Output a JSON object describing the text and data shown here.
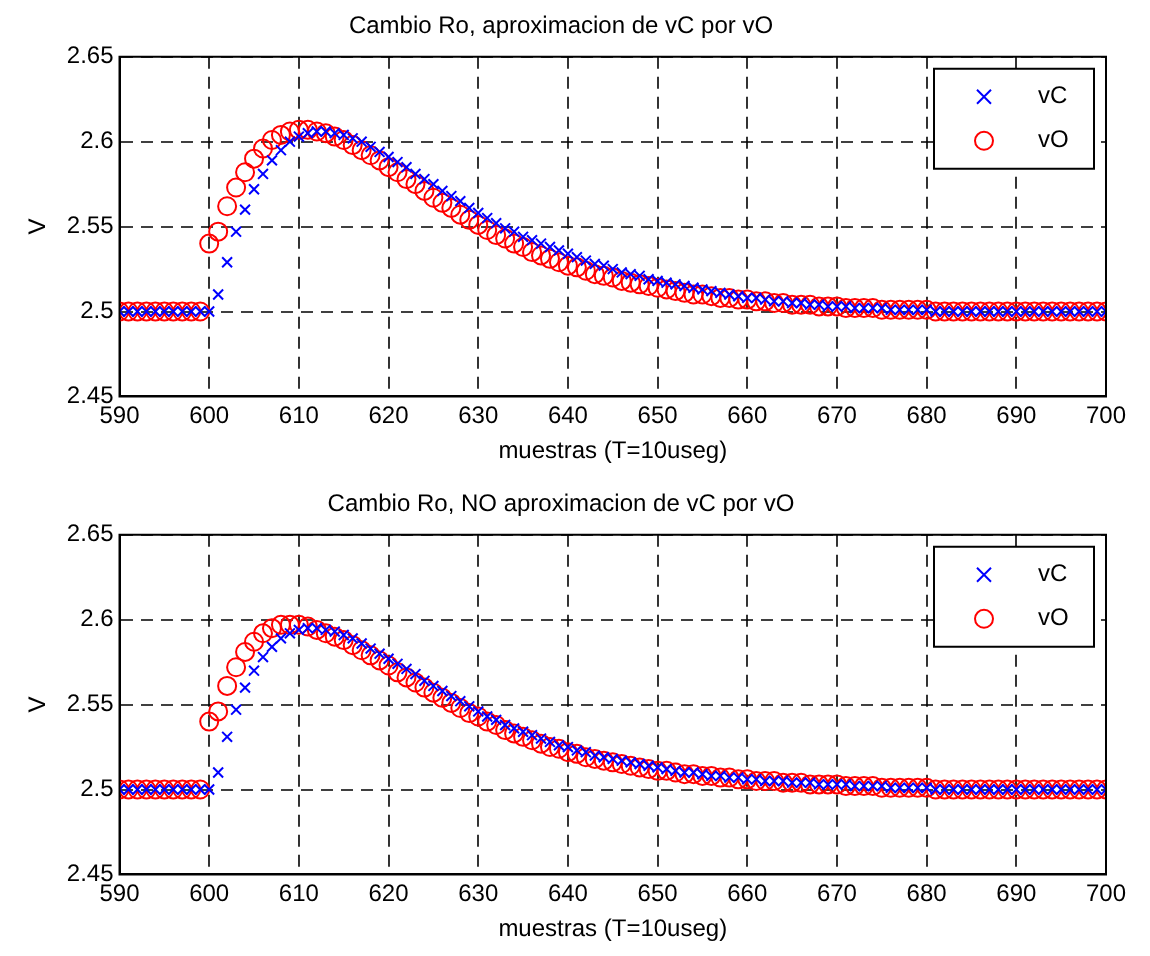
{
  "chart_data": [
    {
      "type": "scatter",
      "title": "Cambio Ro, aproximacion de vC por vO",
      "xlabel": "muestras (T=10useg)",
      "ylabel": "V",
      "x": [
        590,
        591,
        592,
        593,
        594,
        595,
        596,
        597,
        598,
        599,
        600,
        601,
        602,
        603,
        604,
        605,
        606,
        607,
        608,
        609,
        610,
        611,
        612,
        613,
        614,
        615,
        616,
        617,
        618,
        619,
        620,
        621,
        622,
        623,
        624,
        625,
        626,
        627,
        628,
        629,
        630,
        631,
        632,
        633,
        634,
        635,
        636,
        637,
        638,
        639,
        640,
        641,
        642,
        643,
        644,
        645,
        646,
        647,
        648,
        649,
        650,
        651,
        652,
        653,
        654,
        655,
        656,
        657,
        658,
        659,
        660,
        661,
        662,
        663,
        664,
        665,
        666,
        667,
        668,
        669,
        670,
        671,
        672,
        673,
        674,
        675,
        676,
        677,
        678,
        679,
        680,
        681,
        682,
        683,
        684,
        685,
        686,
        687,
        688,
        689,
        690,
        691,
        692,
        693,
        694,
        695,
        696,
        697,
        698,
        699,
        700
      ],
      "xlim": [
        590,
        700
      ],
      "xticks": [
        590,
        600,
        610,
        620,
        630,
        640,
        650,
        660,
        670,
        680,
        690,
        700
      ],
      "ylim": [
        2.45,
        2.65
      ],
      "yticks": [
        2.45,
        2.5,
        2.55,
        2.6,
        2.65
      ],
      "grid": true,
      "legend": "top right",
      "line_style": "dashed",
      "series": [
        {
          "name": "vC",
          "color": "#0000ff",
          "marker": "cross",
          "values": [
            2.5,
            2.5,
            2.5,
            2.5,
            2.5,
            2.5,
            2.5,
            2.5,
            2.5,
            2.5,
            2.5,
            2.51,
            2.529,
            2.547,
            2.56,
            2.572,
            2.581,
            2.589,
            2.595,
            2.6,
            2.603,
            2.605,
            2.606,
            2.606,
            2.605,
            2.604,
            2.602,
            2.6,
            2.597,
            2.594,
            2.591,
            2.588,
            2.585,
            2.581,
            2.578,
            2.575,
            2.571,
            2.568,
            2.565,
            2.561,
            2.558,
            2.555,
            2.552,
            2.549,
            2.547,
            2.544,
            2.542,
            2.54,
            2.538,
            2.536,
            2.534,
            2.532,
            2.53,
            2.528,
            2.527,
            2.525,
            2.523,
            2.522,
            2.521,
            2.519,
            2.518,
            2.517,
            2.516,
            2.515,
            2.514,
            2.513,
            2.512,
            2.511,
            2.51,
            2.509,
            2.508,
            2.508,
            2.507,
            2.506,
            2.506,
            2.505,
            2.505,
            2.504,
            2.504,
            2.503,
            2.503,
            2.503,
            2.502,
            2.502,
            2.502,
            2.502,
            2.501,
            2.501,
            2.501,
            2.501,
            2.501,
            2.5,
            2.5,
            2.5,
            2.5,
            2.5,
            2.5,
            2.5,
            2.5,
            2.5,
            2.5,
            2.5,
            2.5,
            2.5,
            2.5,
            2.5,
            2.5,
            2.5,
            2.5,
            2.5,
            2.5
          ]
        },
        {
          "name": "vO",
          "color": "#ff0000",
          "marker": "circle",
          "values": [
            2.5,
            2.5,
            2.5,
            2.5,
            2.5,
            2.5,
            2.5,
            2.5,
            2.5,
            2.5,
            2.54,
            2.547,
            2.562,
            2.573,
            2.582,
            2.59,
            2.596,
            2.601,
            2.604,
            2.606,
            2.607,
            2.607,
            2.606,
            2.605,
            2.603,
            2.601,
            2.598,
            2.595,
            2.592,
            2.589,
            2.585,
            2.582,
            2.578,
            2.575,
            2.571,
            2.567,
            2.564,
            2.561,
            2.557,
            2.554,
            2.551,
            2.548,
            2.545,
            2.543,
            2.54,
            2.538,
            2.535,
            2.533,
            2.531,
            2.529,
            2.527,
            2.526,
            2.524,
            2.522,
            2.521,
            2.52,
            2.518,
            2.517,
            2.516,
            2.515,
            2.514,
            2.513,
            2.512,
            2.511,
            2.51,
            2.51,
            2.509,
            2.508,
            2.508,
            2.507,
            2.507,
            2.506,
            2.506,
            2.505,
            2.505,
            2.504,
            2.504,
            2.504,
            2.503,
            2.503,
            2.503,
            2.502,
            2.502,
            2.502,
            2.502,
            2.501,
            2.501,
            2.501,
            2.501,
            2.501,
            2.501,
            2.5,
            2.5,
            2.5,
            2.5,
            2.5,
            2.5,
            2.5,
            2.5,
            2.5,
            2.5,
            2.5,
            2.5,
            2.5,
            2.5,
            2.5,
            2.5,
            2.5,
            2.5,
            2.5,
            2.5
          ]
        }
      ]
    },
    {
      "type": "scatter",
      "title": "Cambio Ro, NO aproximacion de vC por vO",
      "xlabel": "muestras (T=10useg)",
      "ylabel": "V",
      "x": [
        590,
        591,
        592,
        593,
        594,
        595,
        596,
        597,
        598,
        599,
        600,
        601,
        602,
        603,
        604,
        605,
        606,
        607,
        608,
        609,
        610,
        611,
        612,
        613,
        614,
        615,
        616,
        617,
        618,
        619,
        620,
        621,
        622,
        623,
        624,
        625,
        626,
        627,
        628,
        629,
        630,
        631,
        632,
        633,
        634,
        635,
        636,
        637,
        638,
        639,
        640,
        641,
        642,
        643,
        644,
        645,
        646,
        647,
        648,
        649,
        650,
        651,
        652,
        653,
        654,
        655,
        656,
        657,
        658,
        659,
        660,
        661,
        662,
        663,
        664,
        665,
        666,
        667,
        668,
        669,
        670,
        671,
        672,
        673,
        674,
        675,
        676,
        677,
        678,
        679,
        680,
        681,
        682,
        683,
        684,
        685,
        686,
        687,
        688,
        689,
        690,
        691,
        692,
        693,
        694,
        695,
        696,
        697,
        698,
        699,
        700
      ],
      "xlim": [
        590,
        700
      ],
      "xticks": [
        590,
        600,
        610,
        620,
        630,
        640,
        650,
        660,
        670,
        680,
        690,
        700
      ],
      "ylim": [
        2.45,
        2.65
      ],
      "yticks": [
        2.45,
        2.5,
        2.55,
        2.6,
        2.65
      ],
      "grid": true,
      "legend": "top right",
      "line_style": "dashed",
      "series": [
        {
          "name": "vC",
          "color": "#0000ff",
          "marker": "cross",
          "values": [
            2.5,
            2.5,
            2.5,
            2.5,
            2.5,
            2.5,
            2.5,
            2.5,
            2.5,
            2.5,
            2.5,
            2.51,
            2.531,
            2.547,
            2.56,
            2.57,
            2.578,
            2.584,
            2.589,
            2.592,
            2.594,
            2.595,
            2.595,
            2.594,
            2.593,
            2.591,
            2.589,
            2.586,
            2.583,
            2.58,
            2.577,
            2.574,
            2.571,
            2.568,
            2.564,
            2.561,
            2.558,
            2.555,
            2.552,
            2.549,
            2.546,
            2.543,
            2.541,
            2.538,
            2.536,
            2.534,
            2.532,
            2.53,
            2.528,
            2.526,
            2.525,
            2.523,
            2.522,
            2.52,
            2.519,
            2.518,
            2.517,
            2.516,
            2.515,
            2.514,
            2.513,
            2.512,
            2.511,
            2.51,
            2.51,
            2.509,
            2.508,
            2.508,
            2.507,
            2.507,
            2.506,
            2.506,
            2.505,
            2.505,
            2.505,
            2.504,
            2.504,
            2.504,
            2.503,
            2.503,
            2.503,
            2.503,
            2.502,
            2.502,
            2.502,
            2.502,
            2.501,
            2.501,
            2.501,
            2.501,
            2.501,
            2.5,
            2.5,
            2.5,
            2.5,
            2.5,
            2.5,
            2.5,
            2.5,
            2.5,
            2.5,
            2.5,
            2.5,
            2.5,
            2.5,
            2.5,
            2.5,
            2.5,
            2.5,
            2.5,
            2.5
          ]
        },
        {
          "name": "vO",
          "color": "#ff0000",
          "marker": "circle",
          "values": [
            2.5,
            2.5,
            2.5,
            2.5,
            2.5,
            2.5,
            2.5,
            2.5,
            2.5,
            2.5,
            2.54,
            2.546,
            2.561,
            2.572,
            2.581,
            2.587,
            2.592,
            2.595,
            2.597,
            2.597,
            2.597,
            2.596,
            2.594,
            2.592,
            2.59,
            2.588,
            2.585,
            2.582,
            2.579,
            2.576,
            2.573,
            2.569,
            2.566,
            2.563,
            2.56,
            2.557,
            2.554,
            2.551,
            2.548,
            2.545,
            2.543,
            2.54,
            2.538,
            2.535,
            2.533,
            2.531,
            2.529,
            2.527,
            2.525,
            2.524,
            2.522,
            2.521,
            2.519,
            2.518,
            2.517,
            2.516,
            2.515,
            2.514,
            2.513,
            2.512,
            2.511,
            2.511,
            2.51,
            2.509,
            2.509,
            2.508,
            2.508,
            2.507,
            2.507,
            2.506,
            2.506,
            2.505,
            2.505,
            2.505,
            2.504,
            2.504,
            2.504,
            2.503,
            2.503,
            2.503,
            2.503,
            2.502,
            2.502,
            2.502,
            2.502,
            2.501,
            2.501,
            2.501,
            2.501,
            2.501,
            2.501,
            2.5,
            2.5,
            2.5,
            2.5,
            2.5,
            2.5,
            2.5,
            2.5,
            2.5,
            2.5,
            2.5,
            2.5,
            2.5,
            2.5,
            2.5,
            2.5,
            2.5,
            2.5,
            2.5,
            2.5
          ]
        }
      ]
    }
  ]
}
